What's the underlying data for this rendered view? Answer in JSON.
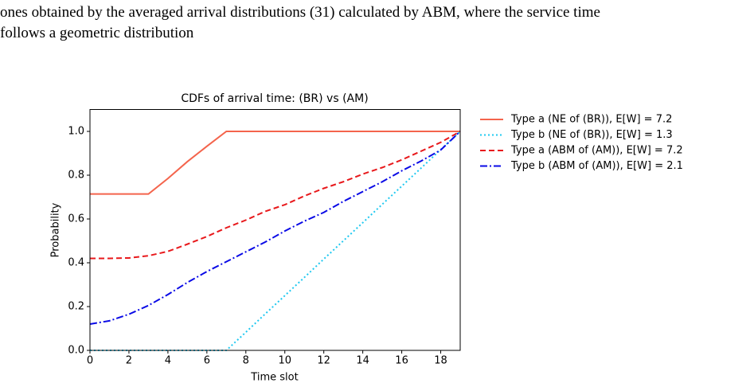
{
  "document": {
    "lines": [
      "ones obtained by the averaged arrival distributions (31) calculated by ABM, where the service time",
      "follows a geometric distribution"
    ]
  },
  "chart_data": {
    "type": "line",
    "title": "CDFs of arrival time: (BR) vs (AM)",
    "x_label": "Time slot",
    "y_label": "Probability",
    "x": [
      0,
      1,
      2,
      3,
      4,
      5,
      6,
      7,
      8,
      9,
      10,
      11,
      12,
      13,
      14,
      15,
      16,
      17,
      18,
      19
    ],
    "series": [
      {
        "name": "Type a (NE of (BR)), E[W] = 7.2",
        "color": "#f4644c",
        "dash": "solid",
        "values": [
          0.714,
          0.714,
          0.714,
          0.714,
          0.785,
          0.862,
          0.932,
          1.0,
          1.0,
          1.0,
          1.0,
          1.0,
          1.0,
          1.0,
          1.0,
          1.0,
          1.0,
          1.0,
          1.0,
          1.0
        ]
      },
      {
        "name": "Type b (NE of (BR)), E[W] = 1.3",
        "color": "#1ec8f0",
        "dash": "dotted",
        "values": [
          0,
          0,
          0,
          0,
          0,
          0,
          0,
          0,
          0.083,
          0.167,
          0.25,
          0.333,
          0.417,
          0.5,
          0.583,
          0.667,
          0.75,
          0.833,
          0.917,
          1.0
        ]
      },
      {
        "name": "Type a (ABM of (AM)), E[W] = 7.2",
        "color": "#e8191c",
        "dash": "dashed",
        "values": [
          0.42,
          0.42,
          0.422,
          0.432,
          0.452,
          0.485,
          0.52,
          0.56,
          0.595,
          0.635,
          0.665,
          0.705,
          0.74,
          0.77,
          0.805,
          0.835,
          0.87,
          0.91,
          0.95,
          1.0
        ]
      },
      {
        "name": "Type b (ABM of (AM)), E[W] = 2.1",
        "color": "#0a0ae6",
        "dash": "dashdot",
        "values": [
          0.12,
          0.135,
          0.165,
          0.205,
          0.255,
          0.31,
          0.36,
          0.405,
          0.45,
          0.495,
          0.545,
          0.59,
          0.63,
          0.68,
          0.725,
          0.77,
          0.82,
          0.865,
          0.915,
          1.0
        ]
      }
    ],
    "xlim": [
      0,
      19
    ],
    "xticks": [
      0,
      2,
      4,
      6,
      8,
      10,
      12,
      14,
      16,
      18
    ],
    "ylim": [
      0,
      1.1
    ],
    "yticks": [
      {
        "value": 0,
        "label": "0.0"
      },
      0.2,
      0.4,
      0.6,
      0.8,
      {
        "value": 1,
        "label": "1.0"
      }
    ],
    "grid": false,
    "legend": "outside-upper-right"
  }
}
